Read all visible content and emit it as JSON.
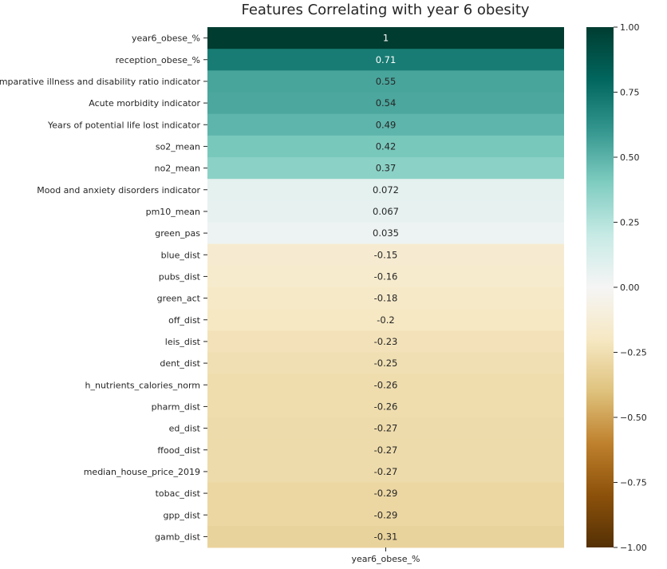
{
  "chart_data": {
    "type": "heatmap",
    "title": "Features Correlating with year 6 obesity",
    "xlabel": "",
    "ylabel": "",
    "columns": [
      "year6_obese_%"
    ],
    "rows": [
      "year6_obese_%",
      "reception_obese_%",
      "Comparative illness and disability ratio indicator",
      "Acute morbidity indicator",
      "Years of potential life lost indicator",
      "so2_mean",
      "no2_mean",
      "Mood and anxiety disorders indicator",
      "pm10_mean",
      "green_pas",
      "blue_dist",
      "pubs_dist",
      "green_act",
      "off_dist",
      "leis_dist",
      "dent_dist",
      "h_nutrients_calories_norm",
      "pharm_dist",
      "ed_dist",
      "ffood_dist",
      "median_house_price_2019",
      "tobac_dist",
      "gpp_dist",
      "gamb_dist"
    ],
    "values": [
      1,
      0.71,
      0.55,
      0.54,
      0.49,
      0.42,
      0.37,
      0.072,
      0.067,
      0.035,
      -0.15,
      -0.16,
      -0.18,
      -0.2,
      -0.23,
      -0.25,
      -0.26,
      -0.26,
      -0.27,
      -0.27,
      -0.27,
      -0.29,
      -0.29,
      -0.31
    ],
    "annotations": [
      "1",
      "0.71",
      "0.55",
      "0.54",
      "0.49",
      "0.42",
      "0.37",
      "0.072",
      "0.067",
      "0.035",
      "-0.15",
      "-0.16",
      "-0.18",
      "-0.2",
      "-0.23",
      "-0.25",
      "-0.26",
      "-0.26",
      "-0.27",
      "-0.27",
      "-0.27",
      "-0.29",
      "-0.29",
      "-0.31"
    ],
    "vmin": -1,
    "vmax": 1,
    "colormap": "BrBG",
    "colorbar_ticks": [
      1,
      0.75,
      0.5,
      0.25,
      0,
      -0.25,
      -0.5,
      -0.75,
      -1
    ],
    "colorbar_tick_labels": [
      "1.00",
      "0.75",
      "0.50",
      "0.25",
      "0.00",
      "−0.25",
      "−0.50",
      "−0.75",
      "−1.00"
    ]
  }
}
